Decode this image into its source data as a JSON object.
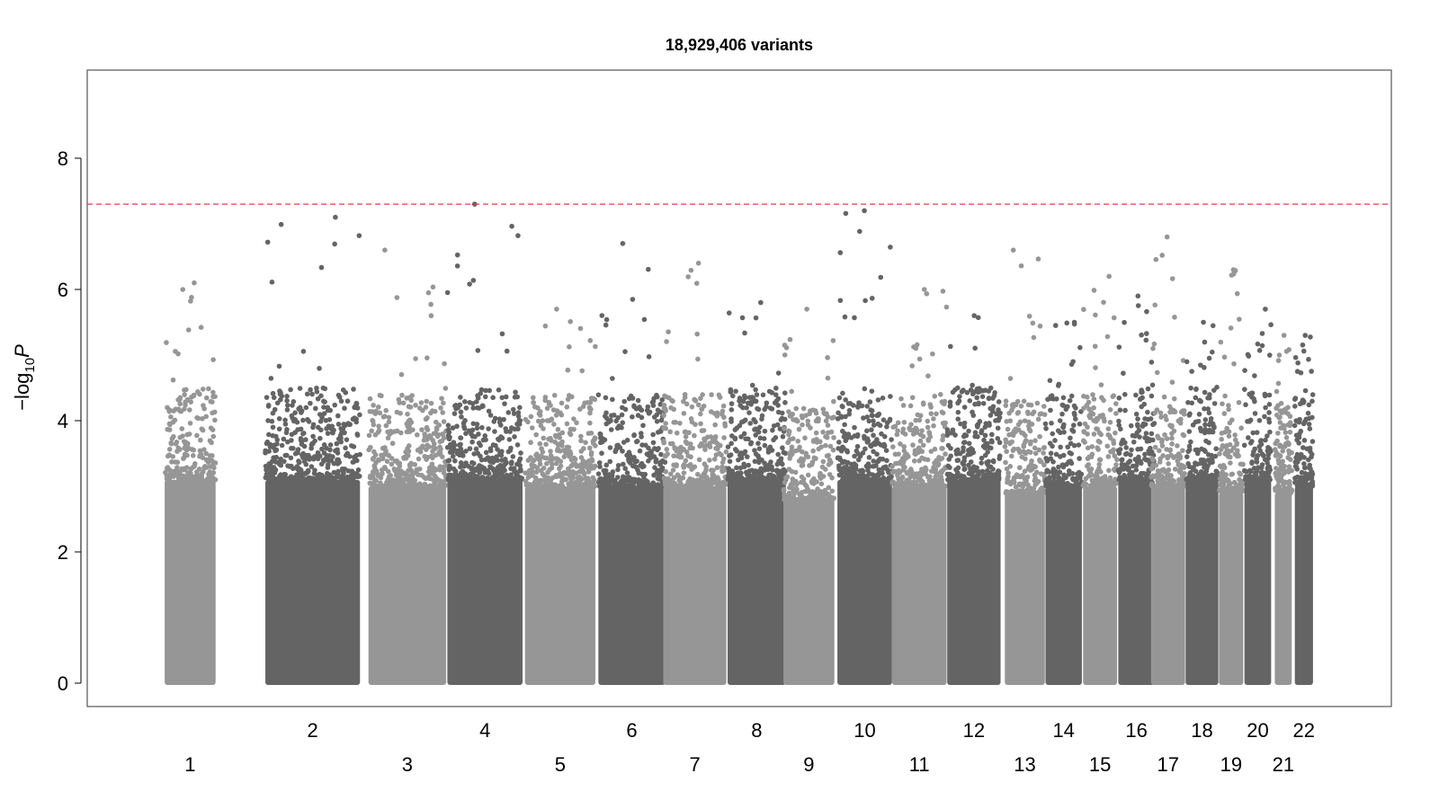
{
  "chart_data": {
    "type": "scatter",
    "subtype": "manhattan",
    "title": "18,929,406 variants",
    "xlabel": "",
    "ylabel": "−log₁₀P",
    "ylabel_parts": {
      "prefix": "−log",
      "subscript": "10",
      "italic": "P"
    },
    "ylim": [
      0,
      9.3
    ],
    "yticks": [
      0,
      2,
      4,
      6,
      8
    ],
    "significance_line": {
      "y": 7.3,
      "color": "#ff3344",
      "style": "dashed"
    },
    "colors": {
      "odd_chromosomes": "#969696",
      "even_chromosomes": "#646464"
    },
    "chromosomes": [
      {
        "label": "1",
        "mid": 0.047,
        "width": 0.042,
        "bulk_top": 3.9,
        "peak": 6.1
      },
      {
        "label": "2",
        "mid": 0.148,
        "width": 0.078,
        "bulk_top": 3.9,
        "peak": 7.1
      },
      {
        "label": "3",
        "mid": 0.226,
        "width": 0.064,
        "bulk_top": 3.8,
        "peak": 6.6
      },
      {
        "label": "4",
        "mid": 0.29,
        "width": 0.062,
        "bulk_top": 3.9,
        "peak": 7.3
      },
      {
        "label": "5",
        "mid": 0.352,
        "width": 0.058,
        "bulk_top": 3.8,
        "peak": 5.7
      },
      {
        "label": "6",
        "mid": 0.411,
        "width": 0.055,
        "bulk_top": 3.8,
        "peak": 6.7
      },
      {
        "label": "7",
        "mid": 0.463,
        "width": 0.052,
        "bulk_top": 3.8,
        "peak": 6.4
      },
      {
        "label": "8",
        "mid": 0.514,
        "width": 0.048,
        "bulk_top": 3.9,
        "peak": 5.8
      },
      {
        "label": "9",
        "mid": 0.557,
        "width": 0.042,
        "bulk_top": 3.6,
        "peak": 5.7
      },
      {
        "label": "10",
        "mid": 0.603,
        "width": 0.045,
        "bulk_top": 3.9,
        "peak": 7.2
      },
      {
        "label": "11",
        "mid": 0.648,
        "width": 0.045,
        "bulk_top": 3.8,
        "peak": 6.0
      },
      {
        "label": "12",
        "mid": 0.693,
        "width": 0.044,
        "bulk_top": 3.9,
        "peak": 5.6
      },
      {
        "label": "13",
        "mid": 0.735,
        "width": 0.033,
        "bulk_top": 3.7,
        "peak": 6.6
      },
      {
        "label": "14",
        "mid": 0.767,
        "width": 0.03,
        "bulk_top": 3.8,
        "peak": 5.5
      },
      {
        "label": "15",
        "mid": 0.797,
        "width": 0.028,
        "bulk_top": 3.8,
        "peak": 6.2
      },
      {
        "label": "16",
        "mid": 0.827,
        "width": 0.03,
        "bulk_top": 3.9,
        "peak": 5.9
      },
      {
        "label": "17",
        "mid": 0.853,
        "width": 0.028,
        "bulk_top": 3.8,
        "peak": 6.8
      },
      {
        "label": "18",
        "mid": 0.881,
        "width": 0.027,
        "bulk_top": 3.9,
        "peak": 5.5
      },
      {
        "label": "19",
        "mid": 0.905,
        "width": 0.02,
        "bulk_top": 3.7,
        "peak": 6.3
      },
      {
        "label": "20",
        "mid": 0.927,
        "width": 0.022,
        "bulk_top": 3.9,
        "peak": 5.7
      },
      {
        "label": "21",
        "mid": 0.948,
        "width": 0.014,
        "bulk_top": 3.7,
        "peak": 5.3
      },
      {
        "label": "22",
        "mid": 0.965,
        "width": 0.015,
        "bulk_top": 3.8,
        "peak": 5.3
      }
    ],
    "top_hits": [
      {
        "chromosome": "2",
        "y": 7.1
      },
      {
        "chromosome": "4",
        "y": 7.3
      },
      {
        "chromosome": "10",
        "y": 7.2
      },
      {
        "chromosome": "17",
        "y": 6.8
      },
      {
        "chromosome": "6",
        "y": 6.7
      },
      {
        "chromosome": "3",
        "y": 6.6
      },
      {
        "chromosome": "13",
        "y": 6.6
      }
    ],
    "grid": false,
    "legend": "none"
  }
}
